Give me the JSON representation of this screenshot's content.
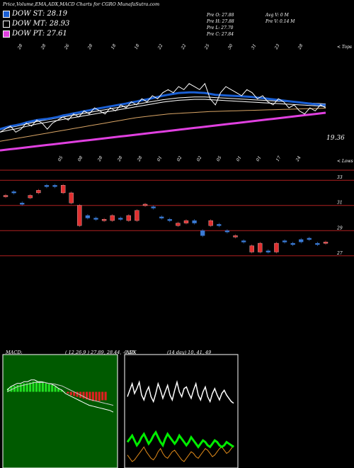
{
  "header": {
    "title": "Price,Volume,EMA,ADX,MACD Charts for CGRO MunafaSutra.com",
    "legend": [
      {
        "label": "DOW ST: 28.19",
        "color": "#1a5fd4"
      },
      {
        "label": "DOW MT: 28.93",
        "color": "#000000"
      },
      {
        "label": "DOW PT: 27.61",
        "color": "#e040e0"
      }
    ],
    "ohlc": {
      "open": "Pre  O: 27.88",
      "high": "Pre  H: 27.88",
      "low": "Pre  L: 27.70",
      "close": "Pre  C: 27.84",
      "avg": "Avg V: 0  M",
      "vol": "Pre  V: 0.14  M"
    }
  },
  "chart_data": [
    {
      "type": "line",
      "name": "price-ema-panel",
      "top_label": "< Tops",
      "bottom_label": "< Lows",
      "last_value_label": "19.36",
      "top_dates": [
        "28",
        "28",
        "26",
        "28",
        "18",
        "18",
        "22",
        "22",
        "25",
        "30",
        "31",
        "23",
        "28"
      ],
      "low_dates": [
        "05",
        "08",
        "28",
        "28",
        "28",
        "01",
        "02",
        "02",
        "05",
        "01",
        "01",
        "17",
        "24"
      ],
      "price": [
        21,
        22,
        23,
        21,
        22,
        24,
        23,
        25,
        24,
        22,
        24,
        25,
        26,
        25,
        27,
        26,
        28,
        27,
        29,
        28,
        27,
        29,
        28,
        30,
        29,
        31,
        30,
        32,
        31,
        33,
        32,
        34,
        35,
        34,
        36,
        35,
        37,
        36,
        35,
        37,
        32,
        30,
        34,
        36,
        35,
        34,
        33,
        35,
        34,
        32,
        33,
        31,
        30,
        32,
        31,
        29,
        30,
        28,
        27,
        29,
        28,
        30,
        29
      ],
      "ema_short": [
        22,
        22.5,
        23,
        23.3,
        23.7,
        24.2,
        24.6,
        25,
        25.2,
        25.4,
        25.7,
        26,
        26.5,
        26.8,
        27.2,
        27.5,
        27.9,
        28.2,
        28.6,
        28.9,
        29.2,
        29.5,
        29.8,
        30.1,
        30.4,
        30.8,
        31.1,
        31.5,
        31.8,
        32.2,
        32.6,
        33,
        33.3,
        33.6,
        33.9,
        34,
        34.1,
        34.1,
        34,
        33.9,
        33.6,
        33.3,
        33.2,
        33.1,
        33,
        32.9,
        32.8,
        32.7,
        32.6,
        32.4,
        32.2,
        32,
        31.8,
        31.6,
        31.4,
        31.2,
        31,
        30.8,
        30.6,
        30.4,
        30.2,
        30,
        29.9
      ],
      "ema_mid": [
        21,
        21.4,
        21.8,
        22.1,
        22.5,
        22.9,
        23.3,
        23.7,
        24,
        24.3,
        24.6,
        24.9,
        25.2,
        25.5,
        25.8,
        26.1,
        26.4,
        26.7,
        27,
        27.3,
        27.6,
        27.9,
        28.2,
        28.5,
        28.8,
        29.1,
        29.4,
        29.7,
        30,
        30.3,
        30.6,
        30.9,
        31.1,
        31.3,
        31.5,
        31.6,
        31.7,
        31.8,
        31.8,
        31.8,
        31.7,
        31.6,
        31.5,
        31.4,
        31.3,
        31.2,
        31.1,
        31,
        30.9,
        30.8,
        30.7,
        30.6,
        30.5,
        30.4,
        30.3,
        30.2,
        30.1,
        30,
        29.9,
        29.8,
        29.7,
        29.6,
        29.5
      ],
      "ema_long": [
        18,
        18.3,
        18.6,
        18.9,
        19.2,
        19.5,
        19.8,
        20.1,
        20.4,
        20.7,
        21,
        21.3,
        21.6,
        21.9,
        22.2,
        22.5,
        22.8,
        23.1,
        23.4,
        23.7,
        24,
        24.3,
        24.6,
        24.9,
        25.2,
        25.5,
        25.8,
        26,
        26.2,
        26.4,
        26.6,
        26.8,
        27,
        27.1,
        27.2,
        27.3,
        27.4,
        27.5,
        27.6,
        27.7,
        27.8,
        27.85,
        27.9,
        27.95,
        28,
        28.05,
        28.1,
        28.15,
        28.2,
        28.25,
        28.3,
        28.35,
        28.4,
        28.45,
        28.5,
        28.55,
        28.6,
        28.65,
        28.7,
        28.75,
        28.8,
        28.85,
        28.9
      ],
      "ema_pt": [
        15,
        15.2,
        15.4,
        15.6,
        15.8,
        16,
        16.2,
        16.4,
        16.6,
        16.8,
        17,
        17.2,
        17.4,
        17.6,
        17.8,
        18,
        18.2,
        18.4,
        18.6,
        18.8,
        19,
        19.2,
        19.4,
        19.6,
        19.8,
        20,
        20.2,
        20.4,
        20.6,
        20.8,
        21,
        21.2,
        21.4,
        21.6,
        21.8,
        22,
        22.2,
        22.4,
        22.6,
        22.8,
        23,
        23.2,
        23.4,
        23.6,
        23.8,
        24,
        24.2,
        24.4,
        24.6,
        24.8,
        25,
        25.2,
        25.4,
        25.6,
        25.8,
        26,
        26.2,
        26.4,
        26.6,
        26.8,
        27,
        27.2,
        27.4
      ],
      "colors": {
        "price": "#ffffff",
        "ema_short": "#1a5fd4",
        "ema_mid": "#ffffff",
        "ema_long": "#d9a566",
        "ema_pt": "#e040e0"
      }
    },
    {
      "type": "bar",
      "name": "candles-panel",
      "y_ticks": [
        "33",
        "31",
        "29",
        "27"
      ],
      "candles": [
        {
          "o": 31.8,
          "c": 31.7,
          "color": "#e03030"
        },
        {
          "o": 32.0,
          "c": 32.1,
          "color": "#3a7bd5"
        },
        {
          "o": 31.2,
          "c": 31.1,
          "color": "#3a7bd5"
        },
        {
          "o": 31.6,
          "c": 31.8,
          "color": "#e03030"
        },
        {
          "o": 32.2,
          "c": 32.0,
          "color": "#e03030"
        },
        {
          "o": 32.6,
          "c": 32.5,
          "color": "#3a7bd5"
        },
        {
          "o": 32.5,
          "c": 32.6,
          "color": "#3a7bd5"
        },
        {
          "o": 32.6,
          "c": 32.0,
          "color": "#e03030"
        },
        {
          "o": 32.0,
          "c": 31.2,
          "color": "#e03030"
        },
        {
          "o": 31.0,
          "c": 29.4,
          "color": "#e03030"
        },
        {
          "o": 30.2,
          "c": 30.0,
          "color": "#3a7bd5"
        },
        {
          "o": 30.0,
          "c": 30.0,
          "color": "#3a7bd5"
        },
        {
          "o": 29.8,
          "c": 29.9,
          "color": "#e03030"
        },
        {
          "o": 30.2,
          "c": 29.8,
          "color": "#e03030"
        },
        {
          "o": 30.0,
          "c": 30.0,
          "color": "#3a7bd5"
        },
        {
          "o": 30.2,
          "c": 29.8,
          "color": "#e03030"
        },
        {
          "o": 30.6,
          "c": 29.8,
          "color": "#e03030"
        },
        {
          "o": 31.1,
          "c": 31.0,
          "color": "#e03030"
        },
        {
          "o": 30.9,
          "c": 30.9,
          "color": "#3a7bd5"
        },
        {
          "o": 30.1,
          "c": 30.0,
          "color": "#3a7bd5"
        },
        {
          "o": 29.9,
          "c": 29.9,
          "color": "#3a7bd5"
        },
        {
          "o": 29.6,
          "c": 29.4,
          "color": "#e03030"
        },
        {
          "o": 29.8,
          "c": 29.6,
          "color": "#e03030"
        },
        {
          "o": 29.6,
          "c": 29.8,
          "color": "#3a7bd5"
        },
        {
          "o": 29.0,
          "c": 28.6,
          "color": "#3a7bd5"
        },
        {
          "o": 29.8,
          "c": 29.4,
          "color": "#e03030"
        },
        {
          "o": 29.4,
          "c": 29.5,
          "color": "#3a7bd5"
        },
        {
          "o": 29.0,
          "c": 29.0,
          "color": "#3a7bd5"
        },
        {
          "o": 28.6,
          "c": 28.5,
          "color": "#e03030"
        },
        {
          "o": 28.2,
          "c": 28.1,
          "color": "#3a7bd5"
        },
        {
          "o": 27.8,
          "c": 27.3,
          "color": "#e03030"
        },
        {
          "o": 28.0,
          "c": 27.3,
          "color": "#e03030"
        },
        {
          "o": 27.4,
          "c": 27.4,
          "color": "#3a7bd5"
        },
        {
          "o": 28.0,
          "c": 27.3,
          "color": "#e03030"
        },
        {
          "o": 28.2,
          "c": 28.1,
          "color": "#3a7bd5"
        },
        {
          "o": 28.0,
          "c": 27.9,
          "color": "#3a7bd5"
        },
        {
          "o": 28.3,
          "c": 28.1,
          "color": "#3a7bd5"
        },
        {
          "o": 28.4,
          "c": 28.3,
          "color": "#3a7bd5"
        },
        {
          "o": 28.0,
          "c": 28.0,
          "color": "#3a7bd5"
        },
        {
          "o": 28.1,
          "c": 28.0,
          "color": "#e03030"
        }
      ]
    },
    {
      "type": "area",
      "name": "macd-panel",
      "title": "MACD:",
      "params": "( 12,26,9 ) 27.89,  28.44,  -0.55",
      "zero_value": 0,
      "histogram": [
        0.2,
        0.3,
        0.35,
        0.4,
        0.45,
        0.5,
        0.5,
        0.55,
        0.6,
        0.6,
        0.6,
        0.55,
        0.5,
        0.45,
        0.4,
        0.3,
        0.2,
        0.1,
        0,
        -0.1,
        -0.2,
        -0.25,
        -0.3,
        -0.35,
        -0.4,
        -0.45,
        -0.5,
        -0.55,
        -0.55,
        -0.55,
        -0.5,
        -0.5
      ],
      "macd": [
        0.1,
        0.3,
        0.4,
        0.5,
        0.5,
        0.6,
        0.6,
        0.7,
        0.7,
        0.6,
        0.6,
        0.55,
        0.5,
        0.45,
        0.35,
        0.2,
        0.1,
        -0.1,
        -0.2,
        -0.3,
        -0.4,
        -0.5,
        -0.6,
        -0.7,
        -0.8,
        -0.85,
        -0.9,
        -0.95,
        -1.0,
        -1.05,
        -1.1,
        -1.2
      ],
      "signal": [
        0.0,
        0.1,
        0.2,
        0.3,
        0.35,
        0.4,
        0.45,
        0.5,
        0.55,
        0.55,
        0.55,
        0.55,
        0.5,
        0.48,
        0.45,
        0.4,
        0.35,
        0.25,
        0.15,
        0.05,
        -0.05,
        -0.15,
        -0.25,
        -0.35,
        -0.45,
        -0.5,
        -0.55,
        -0.6,
        -0.65,
        -0.7,
        -0.75,
        -0.8
      ],
      "colors": {
        "pos": "#22dd22",
        "neg": "#e02020",
        "bg": "#005a00"
      }
    },
    {
      "type": "line",
      "name": "adx-panel",
      "title": "ADX",
      "params": "(14  day) 10,  41,  49",
      "adx_white": [
        44,
        48,
        52,
        46,
        49,
        53,
        45,
        42,
        47,
        50,
        44,
        41,
        46,
        52,
        48,
        43,
        47,
        51,
        45,
        42,
        48,
        53,
        47,
        44,
        49,
        50,
        46,
        43,
        48,
        52,
        45,
        42,
        47,
        50,
        44,
        41,
        46,
        49,
        45,
        42,
        46,
        48,
        45,
        43,
        41,
        40
      ],
      "adx_green": [
        16,
        18,
        20,
        17,
        14,
        16,
        19,
        21,
        18,
        15,
        17,
        20,
        22,
        19,
        16,
        14,
        18,
        21,
        19,
        17,
        15,
        17,
        20,
        18,
        16,
        14,
        16,
        19,
        17,
        15,
        13,
        15,
        17,
        16,
        14,
        13,
        15,
        17,
        16,
        14,
        13,
        14,
        16,
        15,
        14,
        13
      ],
      "adx_orange": [
        8,
        6,
        4,
        5,
        7,
        9,
        11,
        13,
        10,
        8,
        6,
        5,
        7,
        10,
        12,
        9,
        7,
        6,
        8,
        10,
        11,
        9,
        7,
        5,
        4,
        6,
        8,
        10,
        9,
        7,
        6,
        8,
        10,
        12,
        11,
        9,
        7,
        8,
        10,
        12,
        13,
        11,
        9,
        10,
        12,
        14
      ],
      "colors": {
        "white": "#ffffff",
        "green": "#00ee00",
        "orange": "#e08a1a"
      }
    }
  ]
}
